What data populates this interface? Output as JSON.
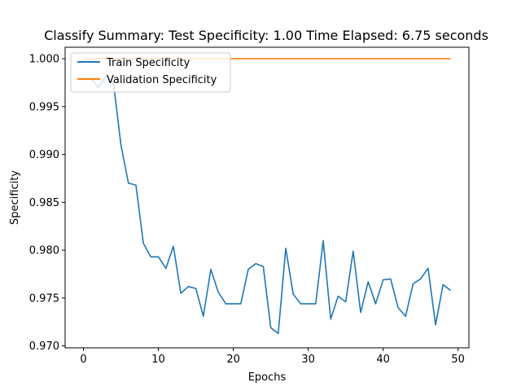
{
  "chart_data": {
    "type": "line",
    "title": "Classify Summary: Test Specificity: 1.00 Time Elapsed: 6.75 seconds",
    "xlabel": "Epochs",
    "ylabel": "Specificity",
    "xlim": [
      -2.45,
      51.45
    ],
    "ylim": [
      0.9698,
      1.0012
    ],
    "xticks": [
      0,
      10,
      20,
      30,
      40,
      50
    ],
    "yticks": [
      0.97,
      0.975,
      0.98,
      0.985,
      0.99,
      0.995,
      1.0
    ],
    "ytick_labels": [
      "0.970",
      "0.975",
      "0.980",
      "0.985",
      "0.990",
      "0.995",
      "1.000"
    ],
    "grid": false,
    "legend_position": "upper-left",
    "x": [
      0,
      1,
      2,
      3,
      4,
      5,
      6,
      7,
      8,
      9,
      10,
      11,
      12,
      13,
      14,
      15,
      16,
      17,
      18,
      19,
      20,
      21,
      22,
      23,
      24,
      25,
      26,
      27,
      28,
      29,
      30,
      31,
      32,
      33,
      34,
      35,
      36,
      37,
      38,
      39,
      40,
      41,
      42,
      43,
      44,
      45,
      46,
      47,
      48,
      49
    ],
    "series": [
      {
        "name": "Train Specificity",
        "color": "#1f77b4",
        "values": [
          0.9978,
          0.9979,
          0.997,
          0.9982,
          0.9975,
          0.991,
          0.987,
          0.9868,
          0.9807,
          0.9793,
          0.9793,
          0.9781,
          0.9804,
          0.9755,
          0.9762,
          0.976,
          0.9731,
          0.978,
          0.9756,
          0.9744,
          0.9744,
          0.9744,
          0.978,
          0.9786,
          0.9783,
          0.9719,
          0.9713,
          0.9802,
          0.9754,
          0.9744,
          0.9744,
          0.9744,
          0.981,
          0.9728,
          0.9752,
          0.9746,
          0.9799,
          0.9735,
          0.9767,
          0.9744,
          0.9769,
          0.977,
          0.974,
          0.9731,
          0.9765,
          0.977,
          0.9781,
          0.9722,
          0.9764,
          0.9758
        ]
      },
      {
        "name": "Validation Specificity",
        "color": "#ff7f0e",
        "values": [
          1.0,
          1.0,
          1.0,
          1.0,
          1.0,
          1.0,
          1.0,
          1.0,
          1.0,
          1.0,
          1.0,
          1.0,
          1.0,
          1.0,
          1.0,
          1.0,
          1.0,
          1.0,
          1.0,
          1.0,
          1.0,
          1.0,
          1.0,
          1.0,
          1.0,
          1.0,
          1.0,
          1.0,
          1.0,
          1.0,
          1.0,
          1.0,
          1.0,
          1.0,
          1.0,
          1.0,
          1.0,
          1.0,
          1.0,
          1.0,
          1.0,
          1.0,
          1.0,
          1.0,
          1.0,
          1.0,
          1.0,
          1.0,
          1.0,
          1.0
        ]
      }
    ]
  }
}
